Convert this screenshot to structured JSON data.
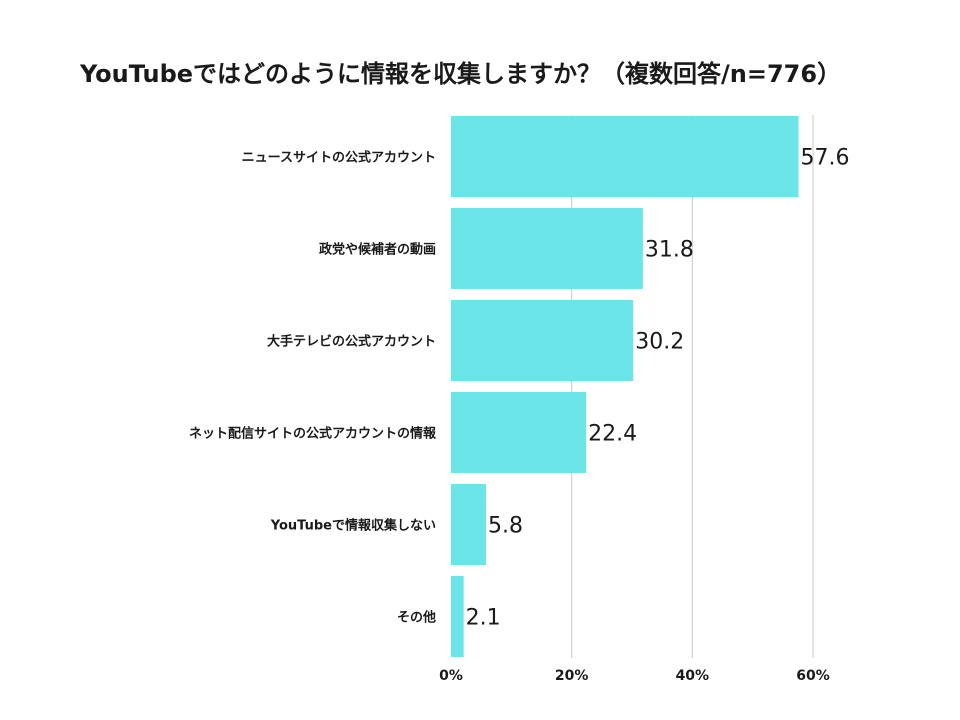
{
  "chart_data": {
    "type": "bar",
    "orientation": "horizontal",
    "title": "YouTubeではどのように情報を収集しますか？（複数回答/n=776）",
    "categories": [
      "ニュースサイトの公式アカウント",
      "政党や候補者の動画",
      "大手テレビの公式アカウント",
      "ネット配信サイトの公式アカウントの情報",
      "YouTubeで情報収集しない",
      "その他"
    ],
    "values": [
      57.6,
      31.8,
      30.2,
      22.4,
      5.8,
      2.1
    ],
    "value_labels": [
      "57.6",
      "31.8",
      "30.2",
      "22.4",
      "5.8",
      "2.1"
    ],
    "xlim": [
      0,
      60
    ],
    "xticks": [
      0,
      20,
      40,
      60
    ],
    "xtick_labels": [
      "0%",
      "20%",
      "40%",
      "60%"
    ],
    "grid": true,
    "legend": "none",
    "bar_color": "#6ce5e8",
    "grid_color": "#c8c8c8"
  }
}
